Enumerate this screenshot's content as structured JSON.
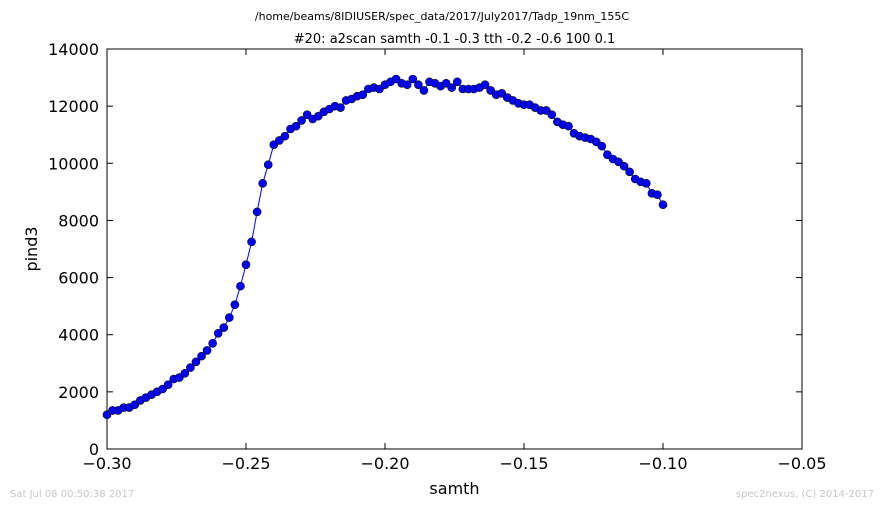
{
  "header": {
    "path": "/home/beams/8IDIUSER/spec_data/2017/July2017/Tadp_19nm_155C"
  },
  "footer": {
    "timestamp": "Sat Jul 08 00:50:38 2017",
    "credit": "spec2nexus, (C) 2014-2017"
  },
  "chart_data": {
    "type": "line",
    "title": "#20: a2scan  samth -0.1 -0.3  tth -0.2 -0.6  100 0.1",
    "xlabel": "samth",
    "ylabel": "pind3",
    "xlim": [
      -0.3,
      -0.05
    ],
    "ylim": [
      0,
      14000
    ],
    "xticks": [
      -0.3,
      -0.25,
      -0.2,
      -0.15,
      -0.1,
      -0.05
    ],
    "xtick_labels": [
      "−0.30",
      "−0.25",
      "−0.20",
      "−0.15",
      "−0.10",
      "−0.05"
    ],
    "yticks": [
      0,
      2000,
      4000,
      6000,
      8000,
      10000,
      12000,
      14000
    ],
    "ytick_labels": [
      "0",
      "2000",
      "4000",
      "6000",
      "8000",
      "10000",
      "12000",
      "14000"
    ],
    "grid": false,
    "colors": {
      "line": "#0000ff",
      "marker_fill": "#0000ff",
      "marker_edge": "#000000"
    },
    "series": [
      {
        "x": [
          -0.3,
          -0.298,
          -0.296,
          -0.294,
          -0.292,
          -0.29,
          -0.288,
          -0.286,
          -0.284,
          -0.282,
          -0.28,
          -0.278,
          -0.276,
          -0.274,
          -0.272,
          -0.27,
          -0.268,
          -0.266,
          -0.264,
          -0.262,
          -0.26,
          -0.258,
          -0.256,
          -0.254,
          -0.252,
          -0.25,
          -0.248,
          -0.246,
          -0.244,
          -0.242,
          -0.24,
          -0.238,
          -0.236,
          -0.234,
          -0.232,
          -0.23,
          -0.228,
          -0.226,
          -0.224,
          -0.222,
          -0.22,
          -0.218,
          -0.216,
          -0.214,
          -0.212,
          -0.21,
          -0.208,
          -0.206,
          -0.204,
          -0.202,
          -0.2,
          -0.198,
          -0.196,
          -0.194,
          -0.192,
          -0.19,
          -0.188,
          -0.186,
          -0.184,
          -0.182,
          -0.18,
          -0.178,
          -0.176,
          -0.174,
          -0.172,
          -0.17,
          -0.168,
          -0.166,
          -0.164,
          -0.162,
          -0.16,
          -0.158,
          -0.156,
          -0.154,
          -0.152,
          -0.15,
          -0.148,
          -0.146,
          -0.144,
          -0.142,
          -0.14,
          -0.138,
          -0.136,
          -0.134,
          -0.132,
          -0.13,
          -0.128,
          -0.126,
          -0.124,
          -0.122,
          -0.12,
          -0.118,
          -0.116,
          -0.114,
          -0.112,
          -0.11,
          -0.108,
          -0.106,
          -0.104,
          -0.102,
          -0.1
        ],
        "y": [
          1200,
          1350,
          1350,
          1450,
          1450,
          1550,
          1700,
          1800,
          1900,
          2000,
          2100,
          2250,
          2450,
          2500,
          2650,
          2850,
          3050,
          3250,
          3450,
          3700,
          4050,
          4250,
          4600,
          5050,
          5700,
          6450,
          7250,
          8300,
          9300,
          9950,
          10650,
          10800,
          10950,
          11200,
          11300,
          11500,
          11700,
          11550,
          11650,
          11800,
          11900,
          12000,
          11950,
          12200,
          12250,
          12350,
          12400,
          12600,
          12650,
          12600,
          12750,
          12850,
          12950,
          12800,
          12750,
          12950,
          12750,
          12550,
          12850,
          12800,
          12700,
          12800,
          12650,
          12850,
          12600,
          12600,
          12600,
          12650,
          12750,
          12550,
          12400,
          12450,
          12300,
          12200,
          12100,
          12050,
          12050,
          11950,
          11850,
          11850,
          11700,
          11450,
          11350,
          11300,
          11050,
          10950,
          10900,
          10850,
          10750,
          10600,
          10300,
          10150,
          10050,
          9900,
          9700,
          9450,
          9350,
          9300,
          8950,
          8900,
          8550
        ]
      }
    ]
  }
}
